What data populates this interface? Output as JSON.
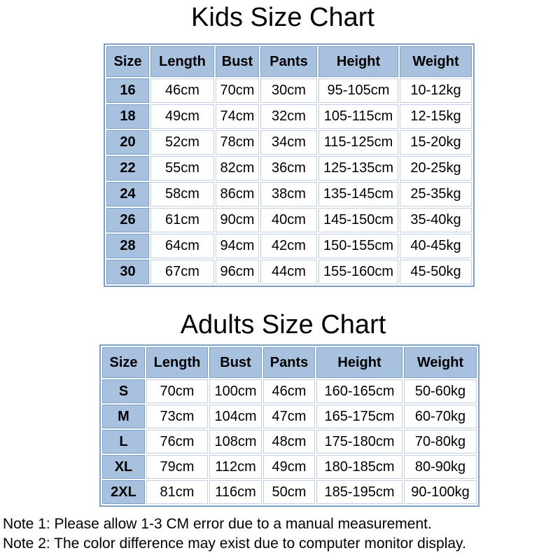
{
  "colors": {
    "header_bg": "#a8c1df",
    "table_border": "#7d9fc6",
    "cell_border": "#c2d0e2",
    "text": "#000000",
    "background": "#ffffff"
  },
  "chart_data": [
    {
      "type": "table",
      "title": "Kids Size Chart",
      "columns": [
        "Size",
        "Length",
        "Bust",
        "Pants",
        "Height",
        "Weight"
      ],
      "rows": [
        [
          "16",
          "46cm",
          "70cm",
          "30cm",
          "95-105cm",
          "10-12kg"
        ],
        [
          "18",
          "49cm",
          "74cm",
          "32cm",
          "105-115cm",
          "12-15kg"
        ],
        [
          "20",
          "52cm",
          "78cm",
          "34cm",
          "115-125cm",
          "15-20kg"
        ],
        [
          "22",
          "55cm",
          "82cm",
          "36cm",
          "125-135cm",
          "20-25kg"
        ],
        [
          "24",
          "58cm",
          "86cm",
          "38cm",
          "135-145cm",
          "25-35kg"
        ],
        [
          "26",
          "61cm",
          "90cm",
          "40cm",
          "145-150cm",
          "35-40kg"
        ],
        [
          "28",
          "64cm",
          "94cm",
          "42cm",
          "150-155cm",
          "40-45kg"
        ],
        [
          "30",
          "67cm",
          "96cm",
          "44cm",
          "155-160cm",
          "45-50kg"
        ]
      ]
    },
    {
      "type": "table",
      "title": "Adults Size Chart",
      "columns": [
        "Size",
        "Length",
        "Bust",
        "Pants",
        "Height",
        "Weight"
      ],
      "rows": [
        [
          "S",
          "70cm",
          "100cm",
          "46cm",
          "160-165cm",
          "50-60kg"
        ],
        [
          "M",
          "73cm",
          "104cm",
          "47cm",
          "165-175cm",
          "60-70kg"
        ],
        [
          "L",
          "76cm",
          "108cm",
          "48cm",
          "175-180cm",
          "70-80kg"
        ],
        [
          "XL",
          "79cm",
          "112cm",
          "49cm",
          "180-185cm",
          "80-90kg"
        ],
        [
          "2XL",
          "81cm",
          "116cm",
          "50cm",
          "185-195cm",
          "90-100kg"
        ]
      ]
    }
  ],
  "notes": [
    "Note 1: Please allow 1-3 CM error due to a manual measurement.",
    "Note 2: The color difference may exist due to computer monitor display."
  ]
}
